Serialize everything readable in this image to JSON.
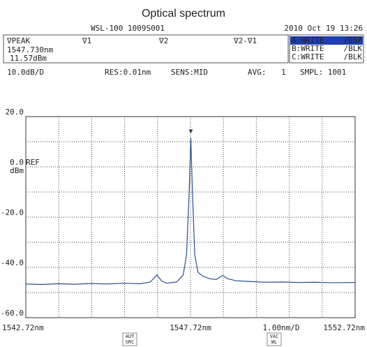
{
  "chart_data": {
    "type": "line",
    "title": "Optical spectrum",
    "instrument": "WSL-100  1009S001",
    "datetime": "2010 Oct 19 13:26",
    "marker_labels": [
      "∇PEAK",
      "∇1",
      "∇2",
      "∇2-∇1"
    ],
    "marker_wavelength": "1547.730nm",
    "marker_level": "11.57dBm",
    "traces": [
      {
        "name": "A:WRITE",
        "mode": "/DSP",
        "color": "#1f3fb0"
      },
      {
        "name": "B:WRITE",
        "mode": "/BLK",
        "color": "#d42020"
      },
      {
        "name": "C:WRITE",
        "mode": "/BLK",
        "color": "#1a9a3a"
      }
    ],
    "settings": [
      "10.0dB/D",
      "RES:0.01nm",
      "SENS:MID",
      "AVG:",
      "1",
      "SMPL: 1001"
    ],
    "ref_label": "REF",
    "y_unit": "dBm",
    "x_scale_label": "1.00nm/D",
    "softkeys": [
      [
        "AUT",
        "SRC"
      ],
      [
        "VAC",
        "WL"
      ]
    ],
    "xlim": [
      1542.72,
      1552.72
    ],
    "xticks": [
      {
        "value": 1542.72,
        "label": "1542.72nm"
      },
      {
        "value": 1547.72,
        "label": "1547.72nm"
      },
      {
        "value": 1552.72,
        "label": "1552.72nm"
      }
    ],
    "x_minor_ticks": [
      1543.72,
      1544.72,
      1545.72,
      1546.72,
      1548.72,
      1549.72,
      1550.72,
      1551.72
    ],
    "ylim": [
      -60,
      20
    ],
    "yticks": [
      {
        "value": 20,
        "label": "20.0"
      },
      {
        "value": 0,
        "label": "0.0"
      },
      {
        "value": -20,
        "label": "-20.0"
      },
      {
        "value": -40,
        "label": "-40.0"
      },
      {
        "value": -60,
        "label": "-60.0"
      }
    ],
    "y_minor_ticks": [
      10,
      -10,
      -30,
      -50
    ],
    "grid": true,
    "series": [
      {
        "name": "A",
        "color": "#2a4f8f",
        "x": [
          1542.72,
          1543.2,
          1543.7,
          1544.2,
          1544.7,
          1545.2,
          1545.7,
          1546.2,
          1546.5,
          1546.7,
          1546.85,
          1547.0,
          1547.3,
          1547.5,
          1547.6,
          1547.68,
          1547.73,
          1547.78,
          1547.85,
          1547.95,
          1548.1,
          1548.3,
          1548.5,
          1548.7,
          1548.85,
          1549.1,
          1549.5,
          1550.0,
          1550.5,
          1551.0,
          1551.5,
          1552.0,
          1552.72
        ],
        "values": [
          -46.6,
          -46.8,
          -46.5,
          -46.7,
          -46.4,
          -46.6,
          -46.3,
          -46.5,
          -45.8,
          -43.0,
          -45.5,
          -46.3,
          -45.8,
          -43.0,
          -35,
          -10,
          11.57,
          -10,
          -35,
          -42,
          -43.5,
          -44.5,
          -44.8,
          -43.2,
          -44.5,
          -45.3,
          -45.6,
          -45.9,
          -45.8,
          -46.0,
          -45.9,
          -46.1,
          -46.0
        ]
      }
    ]
  }
}
